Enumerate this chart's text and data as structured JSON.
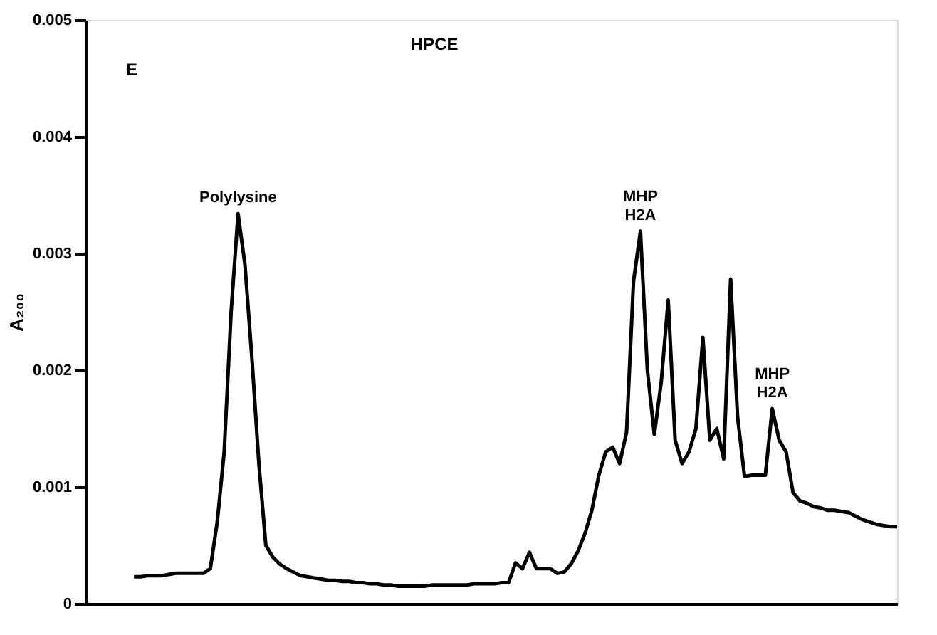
{
  "chart_data": {
    "type": "line",
    "title": "HPCE",
    "ylabel": "A₂₀₀",
    "categories": [
      null,
      null,
      null,
      null,
      null,
      null,
      null,
      null,
      null,
      null,
      null,
      null,
      null,
      null,
      null,
      null,
      null,
      null,
      null,
      null,
      null,
      null,
      null,
      null,
      null,
      null,
      null,
      null,
      null,
      null,
      null,
      null,
      null,
      null,
      null,
      null,
      null,
      null,
      null,
      null,
      null,
      null,
      null,
      null,
      null,
      null,
      null,
      null,
      null,
      null,
      null,
      null,
      null,
      null,
      null,
      null,
      null,
      null,
      null,
      null,
      null,
      null,
      null,
      null,
      null,
      null,
      null,
      null,
      null,
      null,
      null,
      null,
      null,
      null,
      null,
      null,
      null,
      null,
      null,
      null,
      null,
      null,
      null,
      null,
      null,
      null,
      null,
      null,
      null,
      null,
      null,
      null,
      null,
      null,
      null,
      null,
      null,
      null,
      null,
      null,
      null,
      null,
      null,
      null,
      null,
      null,
      null,
      null,
      null,
      null,
      null,
      null,
      null,
      null,
      null,
      null,
      null,
      null
    ],
    "series": [
      {
        "color": "#000000",
        "values": [
          null,
          null,
          null,
          null,
          null,
          null,
          null,
          0.00023,
          0.00023,
          0.00024,
          0.00024,
          0.00024,
          0.00025,
          0.00026,
          0.00026,
          0.00026,
          0.00026,
          0.00026,
          0.0003,
          0.0007,
          0.0013,
          0.0025,
          0.00334,
          0.0029,
          0.0021,
          0.0012,
          0.0005,
          0.0004,
          0.00034,
          0.0003,
          0.00027,
          0.00024,
          0.00023,
          0.00022,
          0.00021,
          0.0002,
          0.0002,
          0.00019,
          0.00019,
          0.00018,
          0.00018,
          0.00017,
          0.00017,
          0.00016,
          0.00016,
          0.00015,
          0.00015,
          0.00015,
          0.00015,
          0.00015,
          0.00016,
          0.00016,
          0.00016,
          0.00016,
          0.00016,
          0.00016,
          0.00017,
          0.00017,
          0.00017,
          0.00017,
          0.00018,
          0.00018,
          0.00035,
          0.0003,
          0.00044,
          0.0003,
          0.0003,
          0.0003,
          0.00026,
          0.00027,
          0.00034,
          0.00045,
          0.0006,
          0.0008,
          0.0011,
          0.0013,
          0.00134,
          0.0012,
          0.00147,
          0.00276,
          0.00319,
          0.002,
          0.00145,
          0.0019,
          0.0026,
          0.0014,
          0.0012,
          0.0013,
          0.0015,
          0.00228,
          0.0014,
          0.0015,
          0.00124,
          0.00278,
          0.0016,
          0.00109,
          0.0011,
          0.0011,
          0.0011,
          0.00167,
          0.0014,
          0.0013,
          0.00095,
          0.00088,
          0.00086,
          0.00083,
          0.00082,
          0.0008,
          0.0008,
          0.00079,
          0.00078,
          0.00075,
          0.00072,
          0.0007,
          0.00068,
          0.00067,
          0.00066,
          0.00066
        ]
      }
    ],
    "ylim": [
      0,
      0.005
    ],
    "yticks": [
      0,
      0.001,
      0.002,
      0.003,
      0.004,
      0.005
    ],
    "tick_labels": "y",
    "grid": false,
    "marker": "none",
    "line_style": "solid",
    "annotations": [
      "E",
      {
        "text": "Polylysine",
        "y": 0.00334
      },
      {
        "text": "MHP\nH2A",
        "y": 0.00319
      },
      {
        "text": "MHP\nH2A",
        "y": 0.00167
      }
    ]
  }
}
